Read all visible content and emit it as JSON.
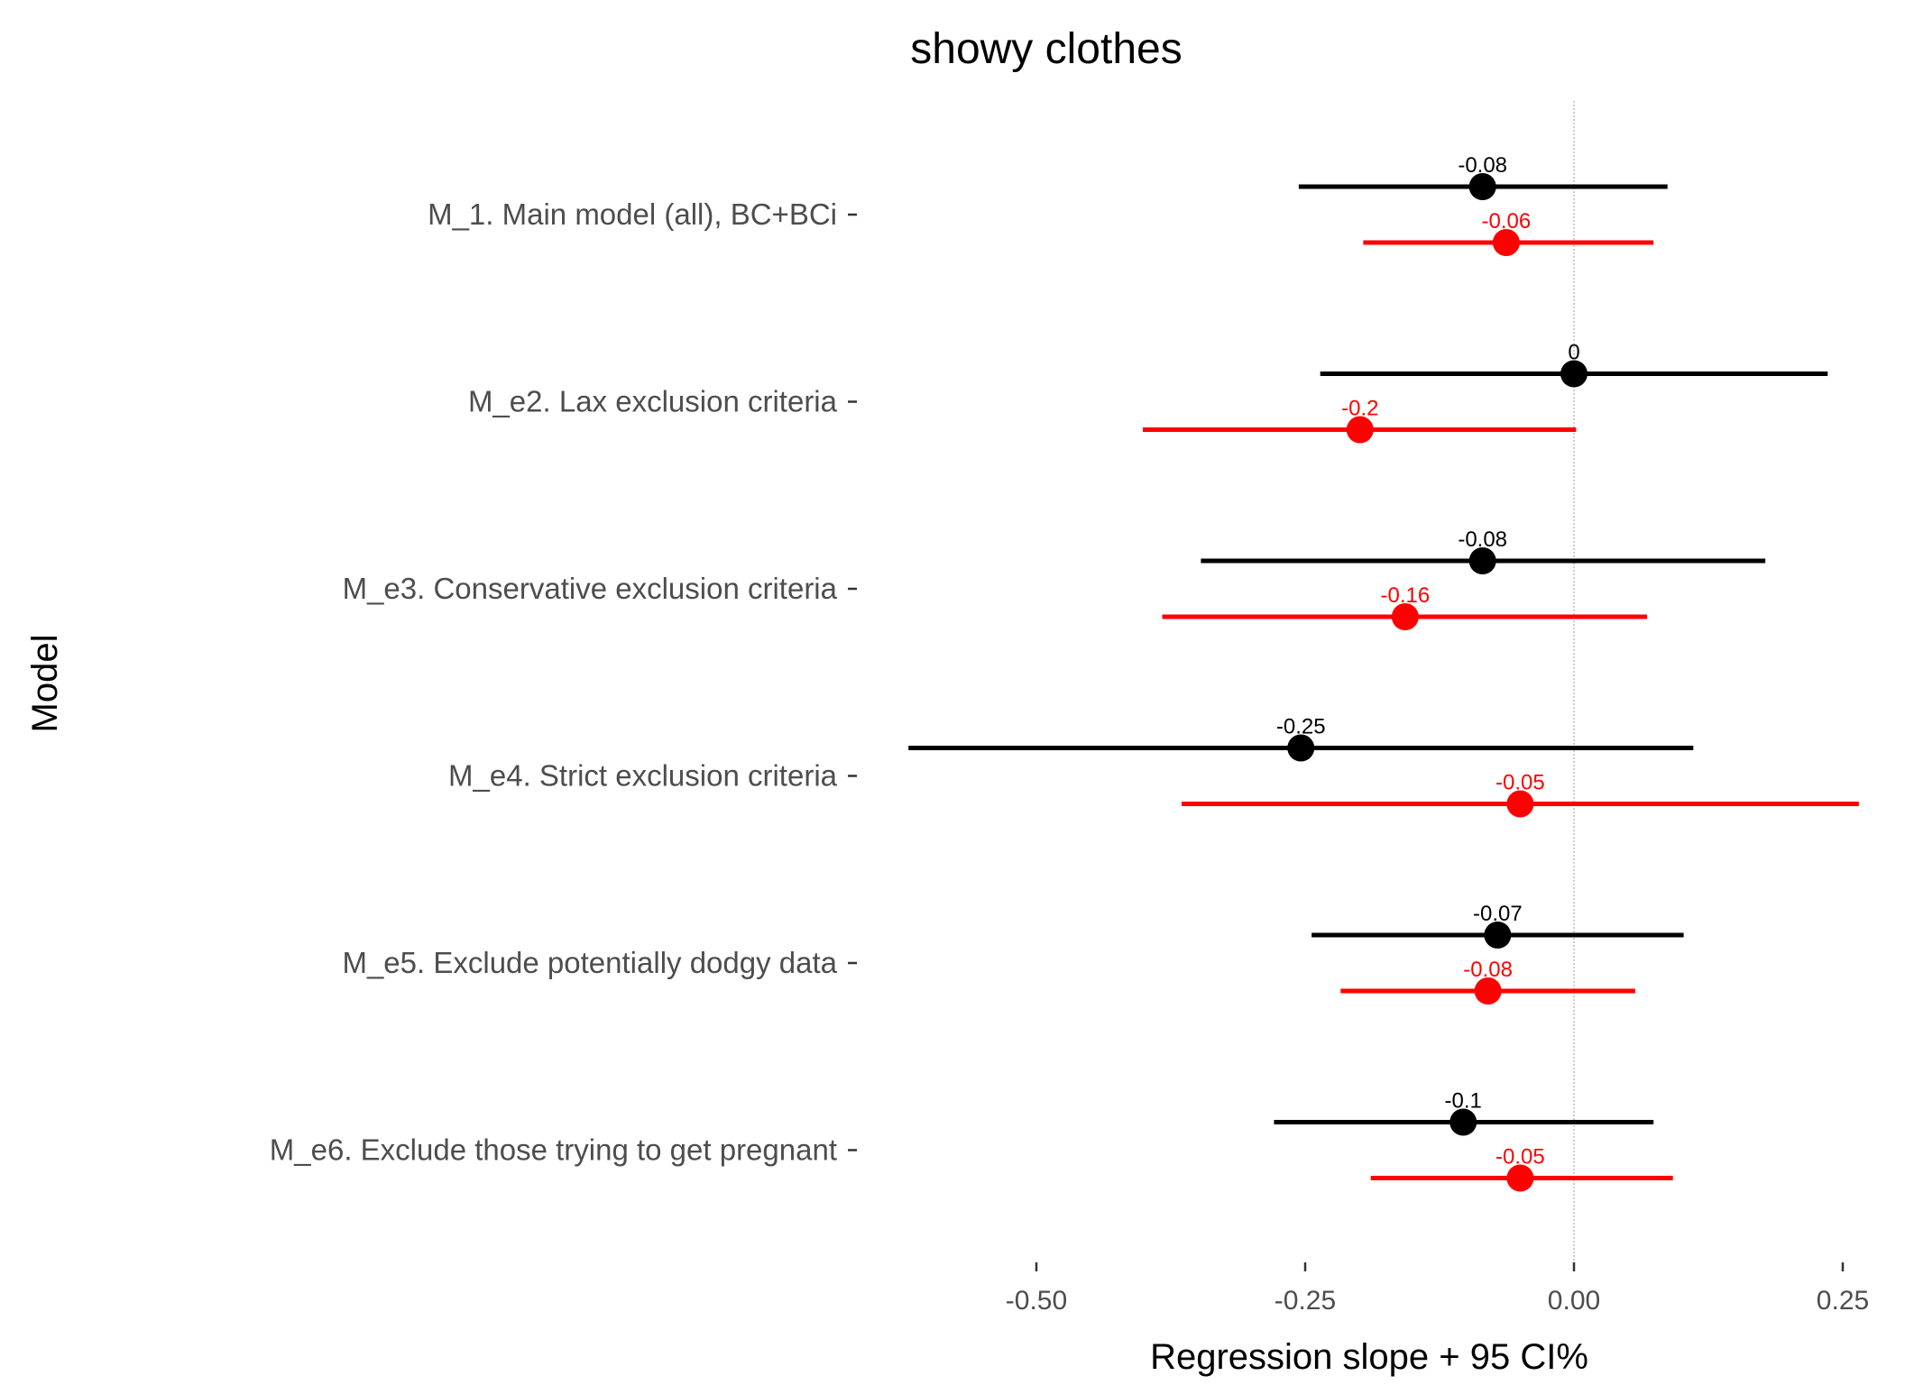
{
  "chart_data": {
    "type": "scatter",
    "title": "showy clothes",
    "xlabel": "Regression slope + 95 CI%",
    "ylabel": "Model",
    "xlim": [
      -0.5,
      0.25
    ],
    "xticks": [
      -0.5,
      -0.25,
      0.0,
      0.25
    ],
    "xtick_labels": [
      "-0.50",
      "-0.25",
      "0.00",
      "0.25"
    ],
    "reference_line_x": 0,
    "grid": false,
    "legend": "none",
    "categories": [
      "M_1. Main model (all), BC+BCi",
      "M_e2. Lax exclusion criteria",
      "M_e3. Conservative exclusion criteria",
      "M_e4. Strict exclusion criteria",
      "M_e5. Exclude potentially dodgy data",
      "M_e6. Exclude those trying to get pregnant"
    ],
    "series": [
      {
        "color": "#000000",
        "points": [
          {
            "est": -0.085,
            "lo": -0.256,
            "hi": 0.087,
            "label": "-0.08"
          },
          {
            "est": 0.0,
            "lo": -0.236,
            "hi": 0.236,
            "label": "0"
          },
          {
            "est": -0.085,
            "lo": -0.347,
            "hi": 0.178,
            "label": "-0.08"
          },
          {
            "est": -0.254,
            "lo": -0.619,
            "hi": 0.111,
            "label": "-0.25"
          },
          {
            "est": -0.071,
            "lo": -0.244,
            "hi": 0.102,
            "label": "-0.07"
          },
          {
            "est": -0.103,
            "lo": -0.279,
            "hi": 0.074,
            "label": "-0.1"
          }
        ]
      },
      {
        "color": "#ff0000",
        "points": [
          {
            "est": -0.063,
            "lo": -0.196,
            "hi": 0.074,
            "label": "-0.06"
          },
          {
            "est": -0.199,
            "lo": -0.401,
            "hi": 0.002,
            "label": "-0.2"
          },
          {
            "est": -0.157,
            "lo": -0.383,
            "hi": 0.068,
            "label": "-0.16"
          },
          {
            "est": -0.05,
            "lo": -0.365,
            "hi": 0.265,
            "label": "-0.05"
          },
          {
            "est": -0.08,
            "lo": -0.217,
            "hi": 0.057,
            "label": "-0.08"
          },
          {
            "est": -0.05,
            "lo": -0.189,
            "hi": 0.092,
            "label": "-0.05"
          }
        ]
      }
    ]
  }
}
